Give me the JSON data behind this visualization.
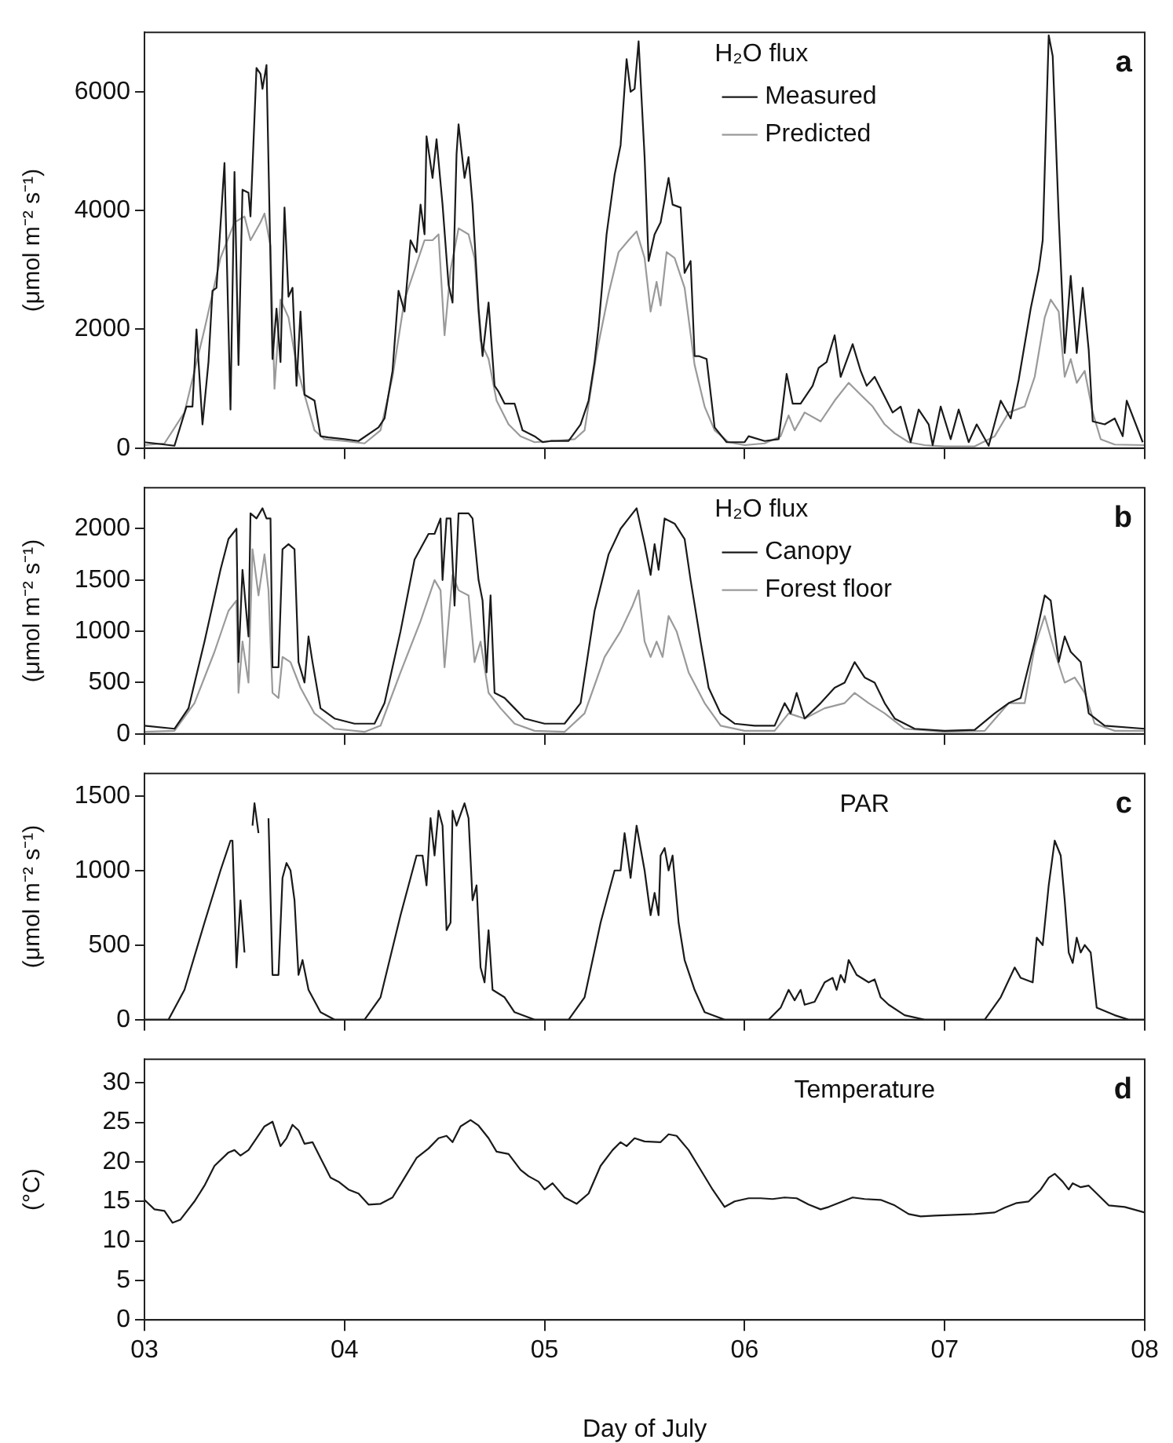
{
  "chart_data": [
    {
      "type": "line",
      "ylabel": "(μmol m⁻² s⁻¹)",
      "legend_title": "H₂O flux",
      "legend": "top right",
      "xlim": [
        3,
        8
      ],
      "xticks": [
        {
          "value": 3,
          "label": null
        },
        {
          "value": 4,
          "label": null
        },
        {
          "value": 5,
          "label": null
        },
        {
          "value": 6,
          "label": null
        },
        {
          "value": 7,
          "label": null
        },
        {
          "value": 8,
          "label": null
        }
      ],
      "ylim": [
        0,
        7000
      ],
      "yticks": [
        0,
        2000,
        4000,
        6000
      ],
      "tick_labels": "y",
      "annotations": [
        "a"
      ],
      "series": [
        {
          "name": "Measured",
          "color": "#1a1a1a",
          "x": [
            3.0,
            3.15,
            3.21,
            3.24,
            3.26,
            3.29,
            3.32,
            3.34,
            3.36,
            3.4,
            3.43,
            3.45,
            3.47,
            3.49,
            3.52,
            3.53,
            3.56,
            3.58,
            3.59,
            3.61,
            3.64,
            3.66,
            3.68,
            3.7,
            3.72,
            3.74,
            3.76,
            3.78,
            3.8,
            3.85,
            3.88,
            3.92,
            4.0,
            4.07,
            4.17,
            4.2,
            4.24,
            4.27,
            4.3,
            4.33,
            4.36,
            4.38,
            4.4,
            4.41,
            4.44,
            4.46,
            4.49,
            4.52,
            4.54,
            4.56,
            4.57,
            4.6,
            4.62,
            4.64,
            4.67,
            4.69,
            4.72,
            4.75,
            4.77,
            4.8,
            4.85,
            4.89,
            4.95,
            4.99,
            5.03,
            5.12,
            5.18,
            5.22,
            5.25,
            5.27,
            5.31,
            5.35,
            5.38,
            5.41,
            5.43,
            5.45,
            5.47,
            5.5,
            5.52,
            5.55,
            5.58,
            5.62,
            5.64,
            5.68,
            5.7,
            5.73,
            5.75,
            5.77,
            5.81,
            5.85,
            5.91,
            6.0,
            6.02,
            6.1,
            6.17,
            6.21,
            6.24,
            6.28,
            6.34,
            6.37,
            6.41,
            6.45,
            6.48,
            6.54,
            6.58,
            6.61,
            6.65,
            6.68,
            6.74,
            6.78,
            6.83,
            6.87,
            6.92,
            6.94,
            6.98,
            7.03,
            7.07,
            7.12,
            7.16,
            7.22,
            7.28,
            7.33,
            7.37,
            7.43,
            7.47,
            7.49,
            7.52,
            7.54,
            7.57,
            7.6,
            7.63,
            7.66,
            7.69,
            7.72,
            7.74,
            7.8,
            7.85,
            7.89,
            7.91,
            7.99
          ],
          "values": [
            100,
            40,
            700,
            700,
            2000,
            400,
            1450,
            2650,
            2700,
            4800,
            650,
            4650,
            1400,
            4350,
            4300,
            3900,
            6400,
            6300,
            6050,
            6450,
            1500,
            2350,
            1450,
            4050,
            2550,
            2700,
            1050,
            2300,
            900,
            800,
            200,
            180,
            150,
            120,
            350,
            500,
            1300,
            2650,
            2300,
            3500,
            3300,
            4100,
            3600,
            5250,
            4550,
            5200,
            4100,
            2750,
            2450,
            4950,
            5450,
            4550,
            4900,
            4100,
            2350,
            1550,
            2450,
            1050,
            950,
            750,
            750,
            300,
            200,
            100,
            120,
            120,
            400,
            800,
            1450,
            2050,
            3600,
            4600,
            5100,
            6550,
            6000,
            6050,
            6850,
            4900,
            3150,
            3600,
            3800,
            4550,
            4100,
            4050,
            2950,
            3150,
            1550,
            1550,
            1500,
            350,
            100,
            100,
            200,
            120,
            150,
            1250,
            750,
            750,
            1050,
            1350,
            1450,
            1900,
            1200,
            1750,
            1300,
            1050,
            1200,
            1000,
            600,
            700,
            100,
            650,
            400,
            50,
            700,
            150,
            650,
            100,
            400,
            40,
            800,
            500,
            1150,
            2350,
            3000,
            3500,
            6950,
            6600,
            3900,
            1600,
            2900,
            1600,
            2700,
            1650,
            450,
            400,
            500,
            200,
            800,
            100
          ]
        },
        {
          "name": "Predicted",
          "color": "#9a9a9a",
          "x": [
            3.0,
            3.1,
            3.2,
            3.3,
            3.38,
            3.45,
            3.5,
            3.53,
            3.58,
            3.6,
            3.63,
            3.65,
            3.68,
            3.72,
            3.76,
            3.8,
            3.85,
            3.9,
            4.0,
            4.1,
            4.18,
            4.24,
            4.3,
            4.36,
            4.4,
            4.44,
            4.47,
            4.5,
            4.53,
            4.57,
            4.62,
            4.65,
            4.68,
            4.72,
            4.76,
            4.82,
            4.88,
            4.95,
            5.05,
            5.15,
            5.2,
            5.26,
            5.32,
            5.37,
            5.42,
            5.46,
            5.5,
            5.53,
            5.56,
            5.58,
            5.61,
            5.65,
            5.7,
            5.75,
            5.8,
            5.85,
            5.92,
            6.0,
            6.1,
            6.18,
            6.22,
            6.25,
            6.3,
            6.38,
            6.45,
            6.52,
            6.58,
            6.64,
            6.7,
            6.75,
            6.82,
            6.9,
            7.0,
            7.15,
            7.25,
            7.32,
            7.4,
            7.45,
            7.5,
            7.53,
            7.57,
            7.6,
            7.63,
            7.66,
            7.7,
            7.74,
            7.78,
            7.85,
            8.0
          ],
          "values": [
            50,
            80,
            600,
            2000,
            3200,
            3800,
            3900,
            3500,
            3800,
            3950,
            3400,
            1000,
            2500,
            2200,
            1400,
            900,
            300,
            150,
            120,
            80,
            300,
            1200,
            2500,
            3100,
            3500,
            3500,
            3600,
            1900,
            3000,
            3700,
            3600,
            3200,
            1800,
            1500,
            800,
            400,
            200,
            100,
            120,
            150,
            300,
            1600,
            2600,
            3300,
            3500,
            3650,
            3200,
            2300,
            2800,
            2400,
            3300,
            3200,
            2700,
            1400,
            700,
            300,
            100,
            50,
            80,
            200,
            550,
            300,
            600,
            450,
            800,
            1100,
            900,
            700,
            400,
            250,
            100,
            50,
            30,
            30,
            200,
            600,
            700,
            1200,
            2200,
            2500,
            2300,
            1200,
            1500,
            1100,
            1300,
            600,
            150,
            60,
            50
          ]
        }
      ]
    },
    {
      "type": "line",
      "ylabel": "(μmol m⁻² s⁻¹)",
      "legend_title": "H₂O flux",
      "legend": "top right",
      "xlim": [
        3,
        8
      ],
      "xticks": [
        {
          "value": 3,
          "label": null
        },
        {
          "value": 4,
          "label": null
        },
        {
          "value": 5,
          "label": null
        },
        {
          "value": 6,
          "label": null
        },
        {
          "value": 7,
          "label": null
        },
        {
          "value": 8,
          "label": null
        }
      ],
      "ylim": [
        0,
        2400
      ],
      "yticks": [
        0,
        500,
        1000,
        1500,
        2000
      ],
      "tick_labels": "y",
      "annotations": [
        "b"
      ],
      "series": [
        {
          "name": "Canopy",
          "color": "#1a1a1a",
          "x": [
            3.0,
            3.15,
            3.22,
            3.3,
            3.38,
            3.42,
            3.46,
            3.47,
            3.49,
            3.52,
            3.53,
            3.56,
            3.59,
            3.61,
            3.63,
            3.64,
            3.67,
            3.69,
            3.72,
            3.75,
            3.77,
            3.8,
            3.82,
            3.84,
            3.88,
            3.95,
            4.05,
            4.15,
            4.2,
            4.28,
            4.35,
            4.42,
            4.45,
            4.48,
            4.49,
            4.51,
            4.53,
            4.55,
            4.57,
            4.62,
            4.64,
            4.67,
            4.69,
            4.71,
            4.73,
            4.75,
            4.8,
            4.85,
            4.9,
            5.0,
            5.1,
            5.18,
            5.25,
            5.32,
            5.38,
            5.42,
            5.46,
            5.5,
            5.53,
            5.55,
            5.57,
            5.6,
            5.65,
            5.7,
            5.73,
            5.78,
            5.82,
            5.88,
            5.95,
            6.05,
            6.15,
            6.2,
            6.23,
            6.26,
            6.3,
            6.38,
            6.45,
            6.5,
            6.55,
            6.6,
            6.65,
            6.7,
            6.75,
            6.85,
            7.0,
            7.15,
            7.25,
            7.32,
            7.38,
            7.45,
            7.5,
            7.53,
            7.57,
            7.6,
            7.63,
            7.68,
            7.72,
            7.8,
            8.0
          ],
          "values": [
            80,
            50,
            250,
            900,
            1600,
            1900,
            2000,
            700,
            1600,
            950,
            2150,
            2100,
            2200,
            2100,
            2100,
            650,
            650,
            1800,
            1850,
            1800,
            700,
            500,
            950,
            700,
            250,
            150,
            100,
            100,
            300,
            1000,
            1700,
            1950,
            1950,
            2100,
            1500,
            2100,
            2100,
            1250,
            2150,
            2150,
            2100,
            1500,
            1300,
            600,
            1350,
            400,
            350,
            250,
            150,
            100,
            100,
            300,
            1200,
            1750,
            2000,
            2100,
            2200,
            1850,
            1550,
            1850,
            1600,
            2100,
            2050,
            1900,
            1500,
            900,
            450,
            200,
            100,
            80,
            80,
            300,
            200,
            400,
            150,
            300,
            450,
            500,
            700,
            550,
            500,
            300,
            150,
            50,
            30,
            40,
            200,
            300,
            350,
            900,
            1350,
            1300,
            700,
            950,
            800,
            700,
            200,
            80,
            50
          ]
        },
        {
          "name": "Forest floor",
          "color": "#9a9a9a",
          "x": [
            3.0,
            3.15,
            3.25,
            3.35,
            3.42,
            3.46,
            3.47,
            3.49,
            3.52,
            3.54,
            3.57,
            3.6,
            3.62,
            3.64,
            3.67,
            3.69,
            3.73,
            3.78,
            3.85,
            3.95,
            4.1,
            4.18,
            4.28,
            4.38,
            4.45,
            4.48,
            4.5,
            4.54,
            4.57,
            4.62,
            4.65,
            4.68,
            4.72,
            4.78,
            4.85,
            4.95,
            5.1,
            5.2,
            5.3,
            5.38,
            5.44,
            5.47,
            5.5,
            5.53,
            5.56,
            5.59,
            5.62,
            5.66,
            5.72,
            5.8,
            5.88,
            6.0,
            6.15,
            6.22,
            6.3,
            6.4,
            6.5,
            6.55,
            6.62,
            6.7,
            6.8,
            7.0,
            7.2,
            7.32,
            7.4,
            7.45,
            7.5,
            7.55,
            7.6,
            7.65,
            7.7,
            7.75,
            7.85,
            8.0
          ],
          "values": [
            20,
            30,
            300,
            800,
            1200,
            1300,
            400,
            900,
            500,
            1800,
            1350,
            1750,
            1400,
            400,
            350,
            750,
            700,
            450,
            200,
            50,
            20,
            80,
            600,
            1100,
            1500,
            1400,
            650,
            1550,
            1400,
            1350,
            700,
            900,
            400,
            250,
            100,
            30,
            20,
            200,
            750,
            1000,
            1250,
            1400,
            900,
            750,
            900,
            750,
            1150,
            1000,
            600,
            300,
            80,
            30,
            30,
            200,
            150,
            250,
            300,
            400,
            300,
            200,
            50,
            20,
            30,
            300,
            300,
            850,
            1150,
            800,
            500,
            550,
            400,
            100,
            30,
            30
          ]
        }
      ]
    },
    {
      "type": "line",
      "ylabel": "(μmol m⁻² s⁻¹)",
      "xlim": [
        3,
        8
      ],
      "xticks": [
        {
          "value": 3,
          "label": null
        },
        {
          "value": 4,
          "label": null
        },
        {
          "value": 5,
          "label": null
        },
        {
          "value": 6,
          "label": null
        },
        {
          "value": 7,
          "label": null
        },
        {
          "value": 8,
          "label": null
        }
      ],
      "ylim": [
        0,
        1650
      ],
      "yticks": [
        0,
        500,
        1000,
        1500
      ],
      "tick_labels": "y",
      "annotations": [
        "PAR",
        "c"
      ],
      "series": [
        {
          "color": "#1a1a1a",
          "x": [
            3.0,
            3.12,
            3.2,
            3.3,
            3.38,
            3.43,
            3.44,
            3.46,
            3.48,
            3.5,
            3.52,
            3.54,
            3.55,
            3.57,
            3.59,
            3.62,
            3.64,
            3.67,
            3.69,
            3.71,
            3.73,
            3.75,
            3.77,
            3.79,
            3.82,
            3.88,
            3.95,
            4.1,
            4.18,
            4.28,
            4.36,
            4.39,
            4.41,
            4.43,
            4.45,
            4.47,
            4.49,
            4.51,
            4.53,
            4.54,
            4.56,
            4.6,
            4.62,
            4.64,
            4.66,
            4.68,
            4.7,
            4.72,
            4.74,
            4.8,
            4.85,
            4.95,
            5.12,
            5.2,
            5.28,
            5.35,
            5.38,
            5.4,
            5.43,
            5.46,
            5.5,
            5.53,
            5.55,
            5.57,
            5.58,
            5.6,
            5.62,
            5.64,
            5.67,
            5.7,
            5.75,
            5.8,
            5.9,
            6.12,
            6.18,
            6.22,
            6.25,
            6.28,
            6.3,
            6.35,
            6.4,
            6.44,
            6.46,
            6.48,
            6.5,
            6.52,
            6.56,
            6.62,
            6.65,
            6.68,
            6.72,
            6.8,
            6.9,
            7.2,
            7.28,
            7.35,
            7.38,
            7.44,
            7.46,
            7.49,
            7.52,
            7.55,
            7.58,
            7.6,
            7.62,
            7.64,
            7.66,
            7.68,
            7.7,
            7.73,
            7.76,
            7.85,
            7.92,
            8.0
          ],
          "values": [
            0,
            0,
            200,
            650,
            1000,
            1200,
            1200,
            350,
            800,
            450,
            null,
            1300,
            1450,
            1250,
            null,
            1350,
            300,
            300,
            950,
            1050,
            1000,
            800,
            300,
            400,
            200,
            50,
            0,
            0,
            150,
            700,
            1100,
            1100,
            900,
            1350,
            1100,
            1400,
            1300,
            600,
            650,
            1400,
            1300,
            1450,
            1350,
            800,
            900,
            350,
            250,
            600,
            200,
            150,
            50,
            0,
            0,
            150,
            650,
            1000,
            1000,
            1250,
            950,
            1300,
            1000,
            700,
            850,
            700,
            1100,
            1150,
            1000,
            1100,
            650,
            400,
            200,
            50,
            0,
            0,
            80,
            200,
            130,
            200,
            100,
            120,
            250,
            280,
            200,
            300,
            250,
            400,
            300,
            250,
            270,
            150,
            100,
            30,
            0,
            0,
            150,
            350,
            280,
            250,
            550,
            500,
            900,
            1200,
            1100,
            800,
            450,
            380,
            550,
            450,
            500,
            450,
            80,
            30,
            0,
            0
          ]
        }
      ]
    },
    {
      "type": "line",
      "ylabel": "(°C)",
      "xlabel": "Day of July",
      "xlim": [
        3,
        8
      ],
      "xticks": [
        {
          "value": 3,
          "label": "03"
        },
        {
          "value": 4,
          "label": "04"
        },
        {
          "value": 5,
          "label": "05"
        },
        {
          "value": 6,
          "label": "06"
        },
        {
          "value": 7,
          "label": "07"
        },
        {
          "value": 8,
          "label": "08"
        }
      ],
      "ylim": [
        0,
        33
      ],
      "yticks": [
        0,
        5,
        10,
        15,
        20,
        25,
        30
      ],
      "annotations": [
        "Temperature",
        "d"
      ],
      "series": [
        {
          "color": "#1a1a1a",
          "x": [
            3.0,
            3.05,
            3.1,
            3.14,
            3.18,
            3.25,
            3.3,
            3.35,
            3.42,
            3.45,
            3.48,
            3.52,
            3.56,
            3.6,
            3.64,
            3.68,
            3.71,
            3.74,
            3.77,
            3.8,
            3.84,
            3.88,
            3.93,
            3.97,
            4.02,
            4.07,
            4.12,
            4.18,
            4.24,
            4.3,
            4.36,
            4.42,
            4.47,
            4.51,
            4.54,
            4.58,
            4.63,
            4.67,
            4.72,
            4.76,
            4.82,
            4.88,
            4.92,
            4.97,
            5.0,
            5.04,
            5.1,
            5.16,
            5.22,
            5.28,
            5.34,
            5.38,
            5.41,
            5.45,
            5.5,
            5.58,
            5.62,
            5.66,
            5.72,
            5.78,
            5.84,
            5.9,
            5.95,
            6.02,
            6.08,
            6.14,
            6.2,
            6.26,
            6.32,
            6.38,
            6.42,
            6.48,
            6.54,
            6.6,
            6.68,
            6.75,
            6.82,
            6.88,
            6.95,
            7.05,
            7.15,
            7.25,
            7.3,
            7.36,
            7.42,
            7.48,
            7.52,
            7.55,
            7.59,
            7.62,
            7.64,
            7.68,
            7.72,
            7.76,
            7.82,
            7.9,
            8.0
          ],
          "values": [
            15.2,
            14,
            13.8,
            12.3,
            12.7,
            15,
            17,
            19.5,
            21.2,
            21.5,
            20.8,
            21.5,
            23,
            24.5,
            25.1,
            22,
            23,
            24.7,
            24,
            22.3,
            22.5,
            20.5,
            18,
            17.5,
            16.5,
            16,
            14.6,
            14.7,
            15.5,
            18,
            20.5,
            21.7,
            23,
            23.3,
            22.5,
            24.5,
            25.3,
            24.6,
            23,
            21.3,
            21,
            19,
            18.2,
            17.5,
            16.5,
            17.3,
            15.5,
            14.7,
            16,
            19.5,
            21.5,
            22.5,
            22,
            23,
            22.6,
            22.5,
            23.5,
            23.3,
            21.5,
            19,
            16.5,
            14.3,
            15,
            15.4,
            15.4,
            15.3,
            15.5,
            15.4,
            14.6,
            14,
            14.3,
            14.9,
            15.5,
            15.3,
            15.2,
            14.5,
            13.4,
            13.1,
            13.2,
            13.3,
            13.4,
            13.6,
            14.2,
            14.8,
            15,
            16.5,
            18,
            18.5,
            17.5,
            16.5,
            17.3,
            16.8,
            17,
            16,
            14.5,
            14.3,
            13.6
          ]
        }
      ]
    }
  ]
}
